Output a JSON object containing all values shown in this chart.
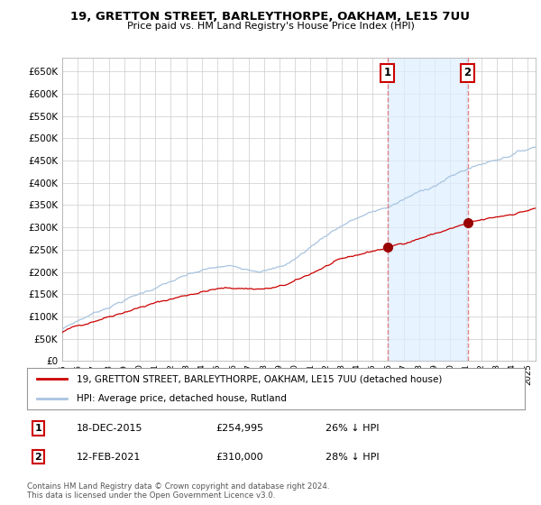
{
  "title": "19, GRETTON STREET, BARLEYTHORPE, OAKHAM, LE15 7UU",
  "subtitle": "Price paid vs. HM Land Registry's House Price Index (HPI)",
  "ylim": [
    0,
    680000
  ],
  "yticks": [
    0,
    50000,
    100000,
    150000,
    200000,
    250000,
    300000,
    350000,
    400000,
    450000,
    500000,
    550000,
    600000,
    650000
  ],
  "ytick_labels": [
    "£0",
    "£50K",
    "£100K",
    "£150K",
    "£200K",
    "£250K",
    "£300K",
    "£350K",
    "£400K",
    "£450K",
    "£500K",
    "£550K",
    "£600K",
    "£650K"
  ],
  "hpi_color": "#a8c4e0",
  "hpi_fill_color": "#ddeeff",
  "price_color": "#cc0000",
  "marker_color": "#990000",
  "vline_color": "#dd6666",
  "annotation_box_color": "#cc0000",
  "background_color": "#ffffff",
  "grid_color": "#cccccc",
  "legend_label_price": "19, GRETTON STREET, BARLEYTHORPE, OAKHAM, LE15 7UU (detached house)",
  "legend_label_hpi": "HPI: Average price, detached house, Rutland",
  "sale1_date": "18-DEC-2015",
  "sale1_price": "£254,995",
  "sale1_hpi": "26% ↓ HPI",
  "sale1_year": 2015.96,
  "sale1_value": 254995,
  "sale2_date": "12-FEB-2021",
  "sale2_price": "£310,000",
  "sale2_hpi": "28% ↓ HPI",
  "sale2_year": 2021.12,
  "sale2_value": 310000,
  "copyright": "Contains HM Land Registry data © Crown copyright and database right 2024.\nThis data is licensed under the Open Government Licence v3.0.",
  "xstart": 1995.0,
  "xend": 2025.5
}
